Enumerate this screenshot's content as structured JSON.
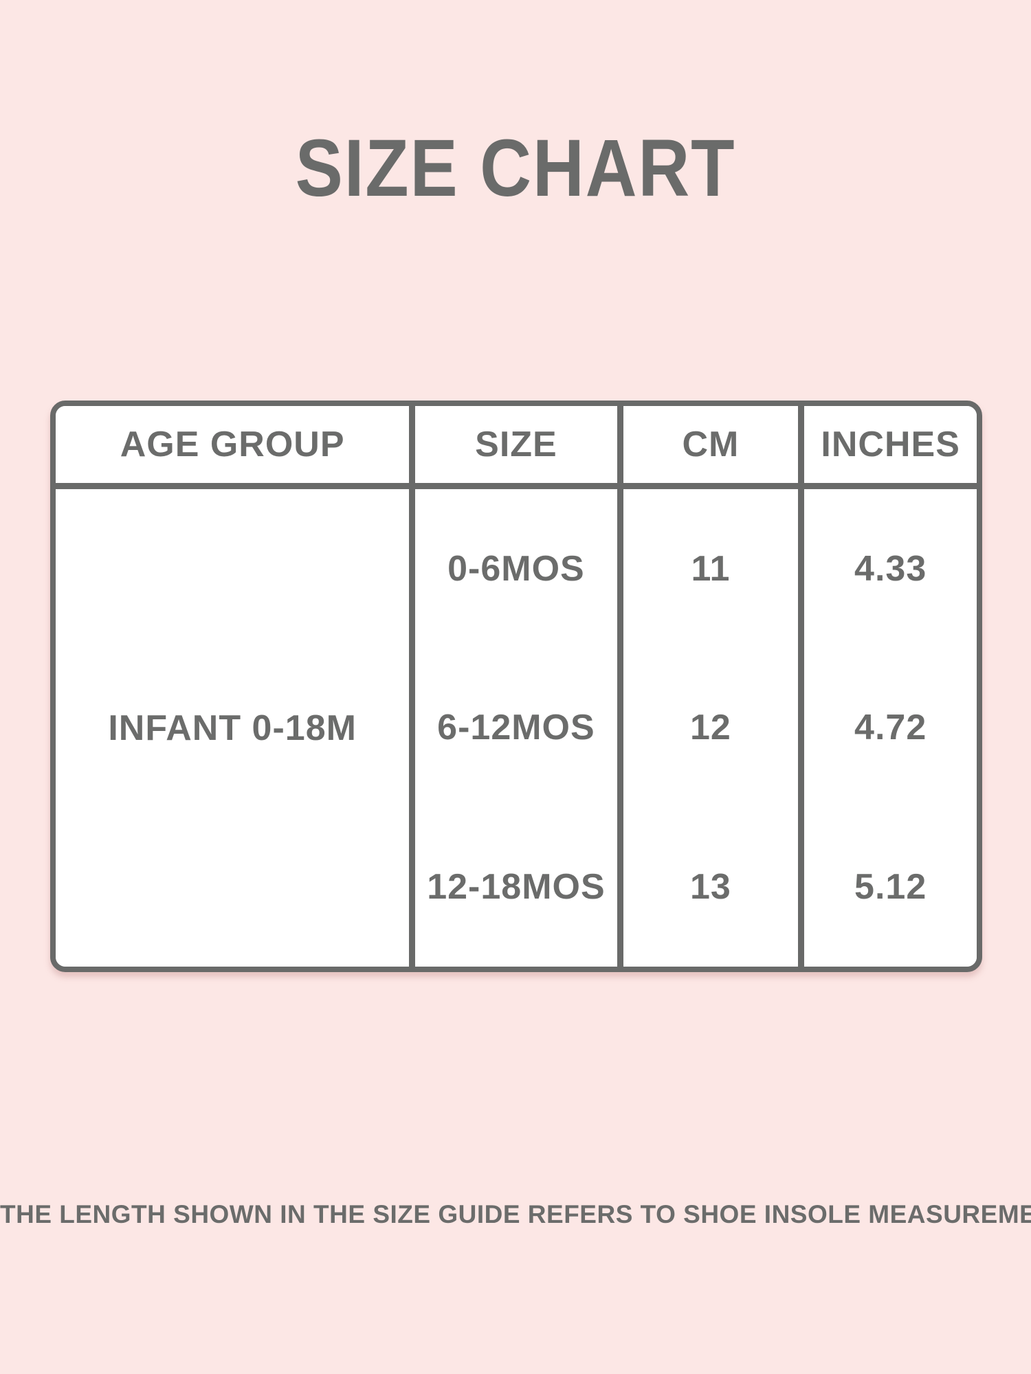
{
  "page": {
    "title": "SIZE CHART",
    "note": "THE LENGTH SHOWN IN THE SIZE GUIDE REFERS TO SHOE INSOLE MEASUREMENTS."
  },
  "colors": {
    "background_pink": "#fce7e5",
    "text_gray": "#6b6c6b",
    "table_border_gray": "#696a69",
    "cell_background": "#ffffff"
  },
  "chart_data": {
    "type": "table",
    "title": "SIZE CHART",
    "columns": [
      "AGE GROUP",
      "SIZE",
      "CM",
      "INCHES"
    ],
    "age_group": "INFANT 0-18M",
    "rows": [
      {
        "age_group": "INFANT 0-18M",
        "size": "0-6MOS",
        "cm": "11",
        "inches": "4.33"
      },
      {
        "age_group": "INFANT 0-18M",
        "size": "6-12MOS",
        "cm": "12",
        "inches": "4.72"
      },
      {
        "age_group": "INFANT 0-18M",
        "size": "12-18MOS",
        "cm": "13",
        "inches": "5.12"
      }
    ],
    "footnote": "THE LENGTH SHOWN IN THE SIZE GUIDE REFERS TO SHOE INSOLE MEASUREMENTS.",
    "layout": {
      "grid": "off",
      "header_row": true,
      "age_group_cell_spans_all_rows": true
    }
  }
}
